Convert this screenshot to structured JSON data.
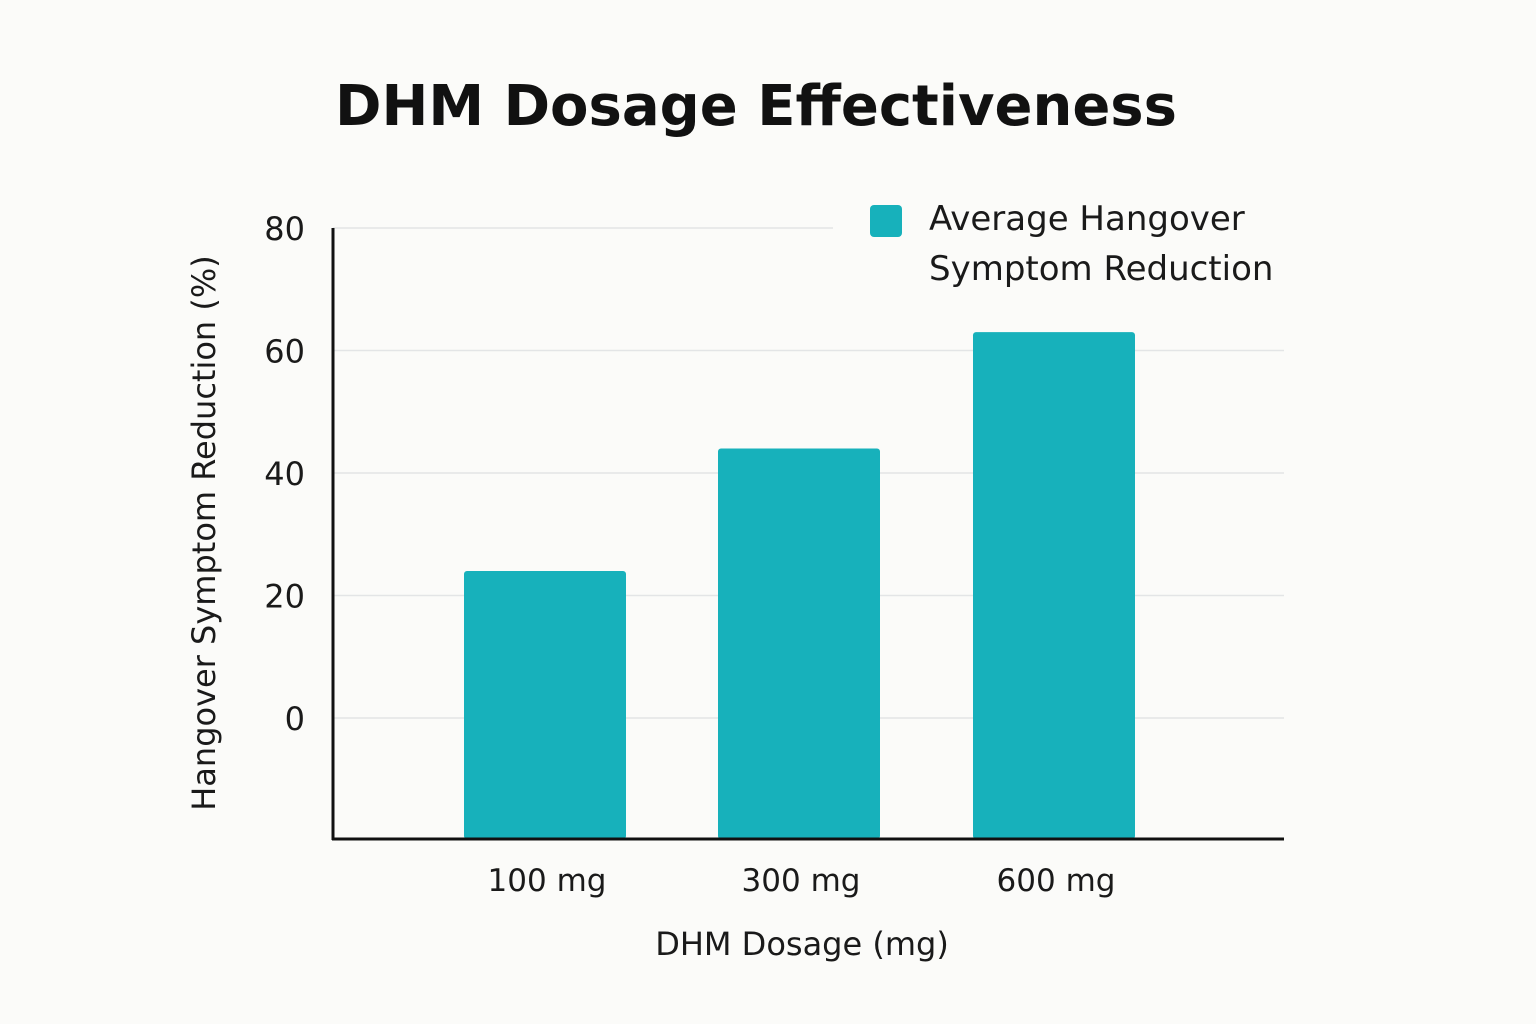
{
  "chart_data": {
    "type": "bar",
    "title": "DHM Dosage Effectiveness",
    "xlabel": "DHM Dosage (mg)",
    "ylabel": "Hangover Symptom Reduction (%)",
    "categories": [
      "100 mg",
      "300 mg",
      "600 mg"
    ],
    "series": [
      {
        "name": "Average Hangover Symptom Reduction",
        "name_lines": [
          "Average Hangover",
          "Symptom Reduction"
        ],
        "values": [
          24,
          44,
          63
        ],
        "color": "#17b1bb"
      }
    ],
    "yticks": [
      0,
      20,
      40,
      60,
      80
    ],
    "ylim": [
      -20,
      80
    ],
    "grid": true,
    "legend": "top-right",
    "colors": {
      "bar": "#17b1bb",
      "grid": "#e3e5e6",
      "axis": "#111111",
      "background": "#fbfbf9"
    }
  }
}
